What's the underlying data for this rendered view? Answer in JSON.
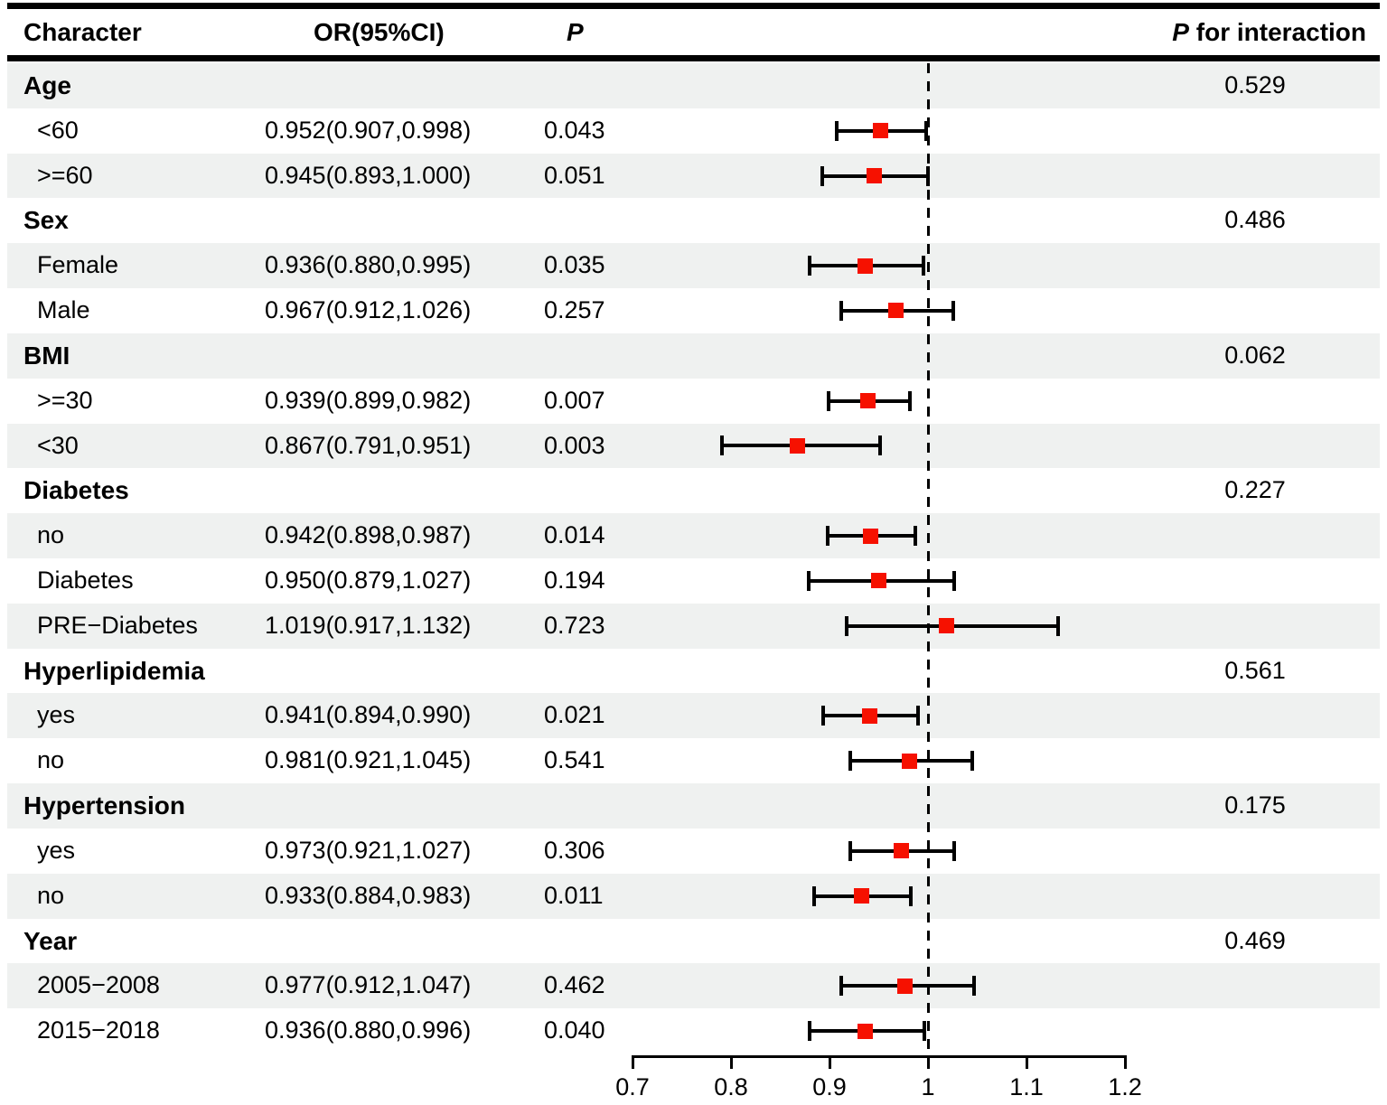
{
  "colors": {
    "row_shade": "#EFF1F0",
    "marker_red": "#F61100",
    "line_black": "#000000",
    "background": "#FFFFFF"
  },
  "header": {
    "character": "Character",
    "or_ci": "OR(95%CI)",
    "p": "P",
    "p_for_interaction": "P for interaction"
  },
  "chart_data": {
    "type": "forest",
    "title": "",
    "columns": [
      "Character",
      "OR(95%CI)",
      "P",
      "P for interaction"
    ],
    "axis": {
      "label": "",
      "min": 0.7,
      "max": 1.2,
      "tick_values": [
        0.7,
        0.8,
        0.9,
        1,
        1.1,
        1.2
      ],
      "tick_labels": [
        "0.7",
        "0.8",
        "0.9",
        "1",
        "1.1",
        "1.2"
      ],
      "ref_line": 1,
      "grid": false
    },
    "rows": [
      {
        "label": "Age",
        "heading": true,
        "shaded": true,
        "p_interaction": "0.529"
      },
      {
        "label": "<60",
        "heading": false,
        "shaded": false,
        "or_ci": "0.952(0.907,0.998)",
        "p": "0.043",
        "est": 0.952,
        "lo": 0.907,
        "hi": 0.998
      },
      {
        "label": ">=60",
        "heading": false,
        "shaded": true,
        "or_ci": "0.945(0.893,1.000)",
        "p": "0.051",
        "est": 0.945,
        "lo": 0.893,
        "hi": 1.0
      },
      {
        "label": "Sex",
        "heading": true,
        "shaded": false,
        "p_interaction": "0.486"
      },
      {
        "label": "Female",
        "heading": false,
        "shaded": true,
        "or_ci": "0.936(0.880,0.995)",
        "p": "0.035",
        "est": 0.936,
        "lo": 0.88,
        "hi": 0.995
      },
      {
        "label": "Male",
        "heading": false,
        "shaded": false,
        "or_ci": "0.967(0.912,1.026)",
        "p": "0.257",
        "est": 0.967,
        "lo": 0.912,
        "hi": 1.026
      },
      {
        "label": "BMI",
        "heading": true,
        "shaded": true,
        "p_interaction": "0.062"
      },
      {
        "label": ">=30",
        "heading": false,
        "shaded": false,
        "or_ci": "0.939(0.899,0.982)",
        "p": "0.007",
        "est": 0.939,
        "lo": 0.899,
        "hi": 0.982
      },
      {
        "label": "<30",
        "heading": false,
        "shaded": true,
        "or_ci": "0.867(0.791,0.951)",
        "p": "0.003",
        "est": 0.867,
        "lo": 0.791,
        "hi": 0.951
      },
      {
        "label": "Diabetes",
        "heading": true,
        "shaded": false,
        "p_interaction": "0.227"
      },
      {
        "label": "no",
        "heading": false,
        "shaded": true,
        "or_ci": "0.942(0.898,0.987)",
        "p": "0.014",
        "est": 0.942,
        "lo": 0.898,
        "hi": 0.987
      },
      {
        "label": "Diabetes",
        "heading": false,
        "shaded": false,
        "or_ci": "0.950(0.879,1.027)",
        "p": "0.194",
        "est": 0.95,
        "lo": 0.879,
        "hi": 1.027
      },
      {
        "label": "PRE−Diabetes",
        "heading": false,
        "shaded": true,
        "or_ci": "1.019(0.917,1.132)",
        "p": "0.723",
        "est": 1.019,
        "lo": 0.917,
        "hi": 1.132
      },
      {
        "label": "Hyperlipidemia",
        "heading": true,
        "shaded": false,
        "p_interaction": "0.561"
      },
      {
        "label": "yes",
        "heading": false,
        "shaded": true,
        "or_ci": "0.941(0.894,0.990)",
        "p": "0.021",
        "est": 0.941,
        "lo": 0.894,
        "hi": 0.99
      },
      {
        "label": "no",
        "heading": false,
        "shaded": false,
        "or_ci": "0.981(0.921,1.045)",
        "p": "0.541",
        "est": 0.981,
        "lo": 0.921,
        "hi": 1.045
      },
      {
        "label": "Hypertension",
        "heading": true,
        "shaded": true,
        "p_interaction": "0.175"
      },
      {
        "label": "yes",
        "heading": false,
        "shaded": false,
        "or_ci": "0.973(0.921,1.027)",
        "p": "0.306",
        "est": 0.973,
        "lo": 0.921,
        "hi": 1.027
      },
      {
        "label": "no",
        "heading": false,
        "shaded": true,
        "or_ci": "0.933(0.884,0.983)",
        "p": "0.011",
        "est": 0.933,
        "lo": 0.884,
        "hi": 0.983
      },
      {
        "label": "Year",
        "heading": true,
        "shaded": false,
        "p_interaction": "0.469"
      },
      {
        "label": "2005−2008",
        "heading": false,
        "shaded": true,
        "or_ci": "0.977(0.912,1.047)",
        "p": "0.462",
        "est": 0.977,
        "lo": 0.912,
        "hi": 1.047
      },
      {
        "label": "2015−2018",
        "heading": false,
        "shaded": false,
        "or_ci": "0.936(0.880,0.996)",
        "p": "0.040",
        "est": 0.936,
        "lo": 0.88,
        "hi": 0.996
      }
    ]
  }
}
